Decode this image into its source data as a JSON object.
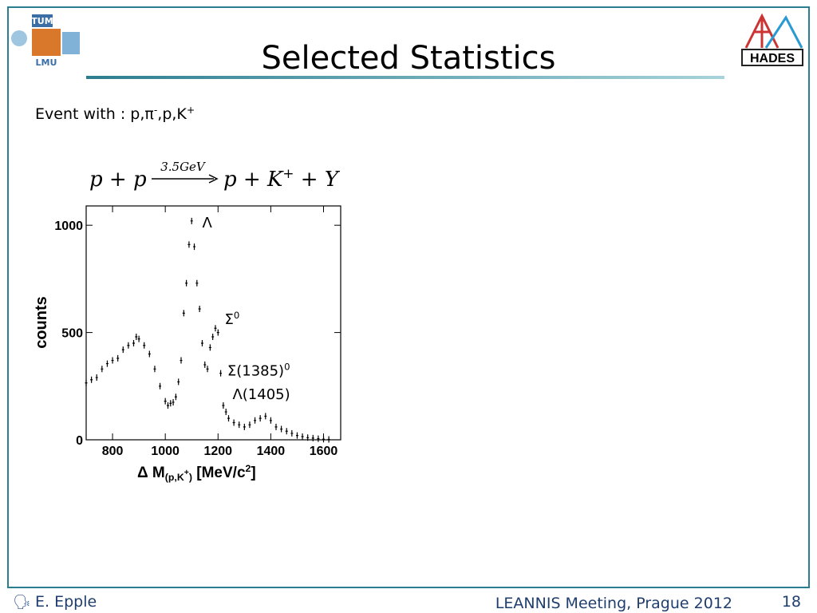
{
  "header": {
    "title": "Selected Statistics",
    "logos": [
      "TUM",
      "LMU",
      "HADES"
    ]
  },
  "body": {
    "event_text": [
      {
        "text": "Event with : p,π"
      },
      {
        "text": "-",
        "pos": "sup"
      },
      {
        "text": ",p,K"
      },
      {
        "text": "+",
        "pos": "sup"
      }
    ],
    "equation": {
      "lhs": "p + p",
      "arrow_label": "3.5GeV",
      "rhs": [
        {
          "text": "p + K"
        },
        {
          "text": "+",
          "pos": "sup"
        },
        {
          "text": " + Y"
        }
      ]
    }
  },
  "chart_data": {
    "type": "scatter",
    "x_label": [
      {
        "text": "Δ M"
      },
      {
        "text": "(p,K",
        "pos": "sub"
      },
      {
        "text": "+",
        "pos": "subsup"
      },
      {
        "text": ")",
        "pos": "sub"
      },
      {
        "text": "  [MeV/c"
      },
      {
        "text": "2",
        "pos": "sup"
      },
      {
        "text": "]"
      }
    ],
    "y_label": "counts",
    "x": [
      700,
      720,
      740,
      760,
      780,
      800,
      820,
      840,
      860,
      880,
      890,
      900,
      920,
      940,
      960,
      980,
      1000,
      1010,
      1020,
      1030,
      1040,
      1050,
      1060,
      1070,
      1080,
      1090,
      1100,
      1110,
      1120,
      1130,
      1140,
      1150,
      1160,
      1170,
      1180,
      1190,
      1200,
      1210,
      1220,
      1230,
      1240,
      1260,
      1280,
      1300,
      1320,
      1340,
      1360,
      1380,
      1400,
      1420,
      1440,
      1460,
      1480,
      1500,
      1520,
      1540,
      1560,
      1580,
      1600,
      1620
    ],
    "values": [
      265,
      280,
      290,
      330,
      355,
      370,
      380,
      420,
      440,
      450,
      480,
      470,
      440,
      400,
      330,
      250,
      180,
      160,
      170,
      175,
      200,
      270,
      370,
      590,
      730,
      910,
      1020,
      900,
      730,
      610,
      450,
      350,
      330,
      430,
      480,
      520,
      500,
      310,
      160,
      130,
      100,
      80,
      70,
      60,
      70,
      90,
      100,
      110,
      90,
      60,
      50,
      40,
      30,
      20,
      15,
      10,
      8,
      5,
      3,
      2
    ],
    "color": "#000000",
    "xlim": [
      700,
      1665
    ],
    "ylim": [
      0,
      1090
    ],
    "xticks": [
      800,
      1000,
      1200,
      1400,
      1600
    ],
    "yticks": [
      0,
      500,
      1000
    ],
    "annotations": [
      {
        "x": 1140,
        "y": 990,
        "parts": [
          {
            "text": "Λ"
          }
        ]
      },
      {
        "x": 1225,
        "y": 540,
        "parts": [
          {
            "text": "Σ"
          },
          {
            "text": "0",
            "pos": "sup"
          }
        ]
      },
      {
        "x": 1235,
        "y": 300,
        "parts": [
          {
            "text": "Σ(1385)"
          },
          {
            "text": "0",
            "pos": "sup"
          }
        ]
      },
      {
        "x": 1255,
        "y": 190,
        "parts": [
          {
            "text": "Λ(1405)"
          }
        ]
      }
    ]
  },
  "footer": {
    "author": "E. Epple",
    "event": "LEANNIS Meeting, Prague 2012",
    "page": "18"
  }
}
